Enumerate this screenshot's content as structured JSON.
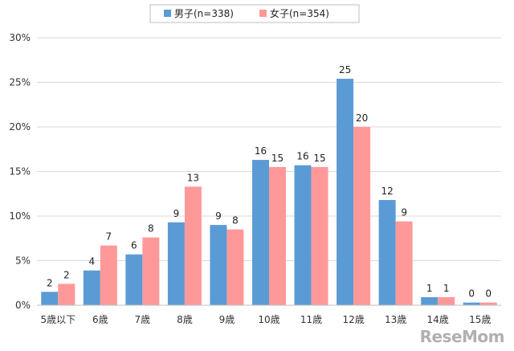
{
  "chart_data": {
    "type": "bar",
    "categories": [
      "5歳以下",
      "6歳",
      "7歳",
      "8歳",
      "9歳",
      "10歳",
      "11歳",
      "12歳",
      "13歳",
      "14歳",
      "15歳"
    ],
    "series": [
      {
        "name": "男子(n=338)",
        "values": [
          1.5,
          3.9,
          5.7,
          9.3,
          9.0,
          16.3,
          15.7,
          25.4,
          11.8,
          0.9,
          0.3
        ],
        "labels": [
          "2",
          "4",
          "6",
          "9",
          "9",
          "16",
          "16",
          "25",
          "12",
          "1",
          "0"
        ],
        "color": "#5b9bd5"
      },
      {
        "name": "女子(n=354)",
        "values": [
          2.4,
          6.7,
          7.6,
          13.3,
          8.5,
          15.5,
          15.5,
          20.0,
          9.4,
          0.9,
          0.3
        ],
        "labels": [
          "2",
          "7",
          "8",
          "13",
          "8",
          "15",
          "15",
          "20",
          "9",
          "1",
          "0"
        ],
        "color": "#ff9999"
      }
    ],
    "yticks": [
      "0%",
      "5%",
      "10%",
      "15%",
      "20%",
      "25%",
      "30%"
    ],
    "ylim": [
      0,
      30
    ],
    "grid": true,
    "legend_position": "top-center",
    "title": "",
    "xlabel": "",
    "ylabel": ""
  },
  "watermark": "ReseMom"
}
